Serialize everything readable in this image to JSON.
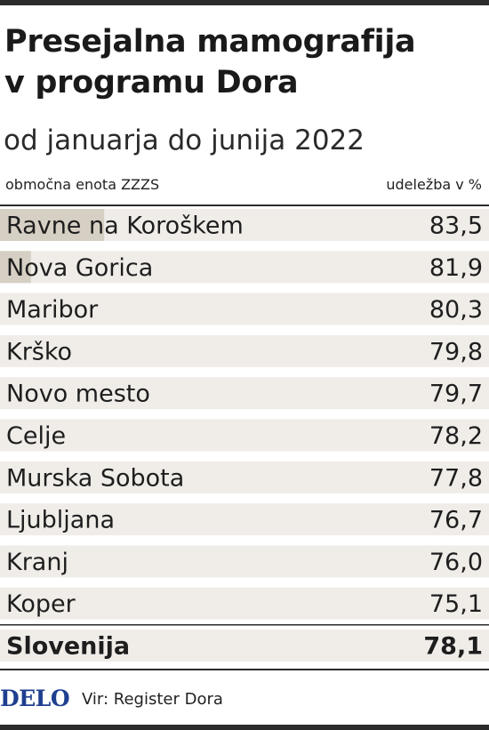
{
  "header": {
    "title_line1": "Presejalna mamografija",
    "title_line2": "v programu Dora",
    "subtitle": "od januarja do junija 2022"
  },
  "columns": {
    "left": "območna enota ZZZS",
    "right": "udeležba v %"
  },
  "chart_data": {
    "type": "bar",
    "orientation": "horizontal",
    "categories": [
      "Ravne na Koroškem",
      "Nova Gorica",
      "Maribor",
      "Krško",
      "Novo mesto",
      "Celje",
      "Murska Sobota",
      "Ljubljana",
      "Kranj",
      "Koper",
      "Slovenija"
    ],
    "values": [
      83.5,
      81.9,
      80.3,
      79.8,
      79.7,
      78.2,
      77.8,
      76.7,
      76.0,
      75.1,
      78.1
    ],
    "value_labels": [
      "83,5",
      "81,9",
      "80,3",
      "79,8",
      "79,7",
      "78,2",
      "77,8",
      "76,7",
      "76,0",
      "75,1",
      "78,1"
    ],
    "highlight": "Slovenija",
    "xlim": [
      30,
      90
    ],
    "colors": {
      "bar": "#d6cfc4",
      "track": "#f0ede9"
    }
  },
  "footer": {
    "logo": "DELO",
    "source": "Vir: Register Dora"
  }
}
